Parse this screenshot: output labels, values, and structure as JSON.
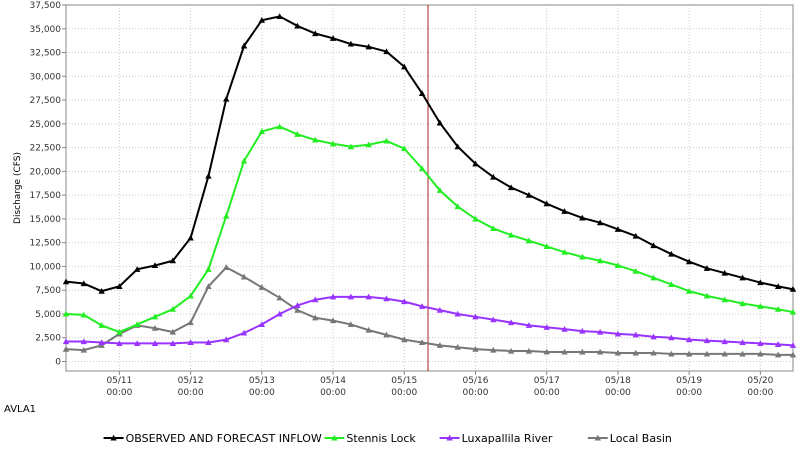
{
  "chart_data": {
    "type": "line",
    "ylabel": "Discharge (CFS)",
    "xlabel": "",
    "station_label": "AVLA1",
    "ylim": [
      -1000,
      37500
    ],
    "xlim": [
      0,
      245
    ],
    "y_ticks": [
      "0",
      "2,500",
      "5,000",
      "7,500",
      "10,000",
      "12,500",
      "15,000",
      "17,500",
      "20,000",
      "22,500",
      "25,000",
      "27,500",
      "30,000",
      "32,500",
      "35,000",
      "37,500"
    ],
    "x_ticks": [
      {
        "date": "05/11",
        "time": "00:00",
        "hour": 18
      },
      {
        "date": "05/12",
        "time": "00:00",
        "hour": 42
      },
      {
        "date": "05/13",
        "time": "00:00",
        "hour": 66
      },
      {
        "date": "05/14",
        "time": "00:00",
        "hour": 90
      },
      {
        "date": "05/15",
        "time": "00:00",
        "hour": 114
      },
      {
        "date": "05/16",
        "time": "00:00",
        "hour": 138
      },
      {
        "date": "05/17",
        "time": "00:00",
        "hour": 162
      },
      {
        "date": "05/18",
        "time": "00:00",
        "hour": 186
      },
      {
        "date": "05/19",
        "time": "00:00",
        "hour": 210
      },
      {
        "date": "05/20",
        "time": "00:00",
        "hour": 234
      }
    ],
    "current_time_hour": 122,
    "grid": true,
    "legend_position": "bottom",
    "series": [
      {
        "name": "OBSERVED AND FORECAST INFLOW",
        "color": "#000000",
        "x": [
          0,
          6,
          12,
          18,
          24,
          30,
          36,
          42,
          48,
          54,
          60,
          66,
          72,
          78,
          84,
          90,
          96,
          102,
          108,
          114,
          120,
          126,
          132,
          138,
          144,
          150,
          156,
          162,
          168,
          174,
          180,
          186,
          192,
          198,
          204,
          210,
          216,
          222,
          228,
          234,
          240,
          245
        ],
        "values": [
          8400,
          8200,
          7400,
          7900,
          9700,
          10100,
          10600,
          13000,
          19500,
          27600,
          33200,
          35900,
          36300,
          35300,
          34500,
          34000,
          33400,
          33100,
          32600,
          31000,
          28200,
          25100,
          22600,
          20800,
          19400,
          18300,
          17500,
          16600,
          15800,
          15100,
          14600,
          13900,
          13200,
          12200,
          11300,
          10500,
          9800,
          9300,
          8800,
          8300,
          7900,
          7600
        ]
      },
      {
        "name": "Stennis Lock",
        "color": "#22ee22",
        "x": [
          0,
          6,
          12,
          18,
          24,
          30,
          36,
          42,
          48,
          54,
          60,
          66,
          72,
          78,
          84,
          90,
          96,
          102,
          108,
          114,
          120,
          126,
          132,
          138,
          144,
          150,
          156,
          162,
          168,
          174,
          180,
          186,
          192,
          198,
          204,
          210,
          216,
          222,
          228,
          234,
          240,
          245
        ],
        "values": [
          5000,
          4900,
          3800,
          3100,
          3900,
          4700,
          5500,
          6900,
          9700,
          15300,
          21100,
          24200,
          24700,
          23900,
          23300,
          22900,
          22600,
          22800,
          23200,
          22400,
          20300,
          18000,
          16300,
          15000,
          14000,
          13300,
          12700,
          12100,
          11500,
          11000,
          10600,
          10100,
          9500,
          8800,
          8100,
          7400,
          6900,
          6500,
          6100,
          5800,
          5500,
          5200
        ]
      },
      {
        "name": "Luxapallila River",
        "color": "#9933ff",
        "x": [
          0,
          6,
          12,
          18,
          24,
          30,
          36,
          42,
          48,
          54,
          60,
          66,
          72,
          78,
          84,
          90,
          96,
          102,
          108,
          114,
          120,
          126,
          132,
          138,
          144,
          150,
          156,
          162,
          168,
          174,
          180,
          186,
          192,
          198,
          204,
          210,
          216,
          222,
          228,
          234,
          240,
          245
        ],
        "values": [
          2100,
          2100,
          2000,
          1900,
          1900,
          1900,
          1900,
          2000,
          2000,
          2300,
          3000,
          3900,
          5000,
          5900,
          6500,
          6800,
          6800,
          6800,
          6600,
          6300,
          5800,
          5400,
          5000,
          4700,
          4400,
          4100,
          3800,
          3600,
          3400,
          3200,
          3100,
          2900,
          2800,
          2600,
          2500,
          2300,
          2200,
          2100,
          2000,
          1900,
          1800,
          1700
        ]
      },
      {
        "name": "Local Basin",
        "color": "#777777",
        "x": [
          0,
          6,
          12,
          18,
          24,
          30,
          36,
          42,
          48,
          54,
          60,
          66,
          72,
          78,
          84,
          90,
          96,
          102,
          108,
          114,
          120,
          126,
          132,
          138,
          144,
          150,
          156,
          162,
          168,
          174,
          180,
          186,
          192,
          198,
          204,
          210,
          216,
          222,
          228,
          234,
          240,
          245
        ],
        "values": [
          1300,
          1200,
          1700,
          2900,
          3800,
          3500,
          3100,
          4100,
          7900,
          9900,
          8900,
          7800,
          6700,
          5400,
          4600,
          4300,
          3900,
          3300,
          2800,
          2300,
          2000,
          1700,
          1500,
          1300,
          1200,
          1100,
          1100,
          1000,
          1000,
          1000,
          1000,
          900,
          900,
          900,
          800,
          800,
          800,
          800,
          800,
          800,
          700,
          700
        ]
      }
    ]
  }
}
